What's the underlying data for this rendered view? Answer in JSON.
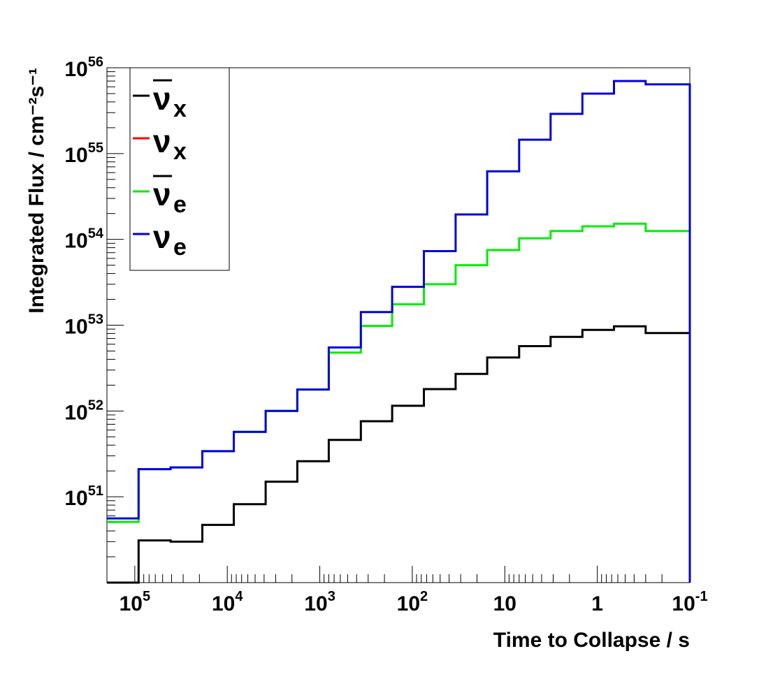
{
  "chart_data": {
    "type": "line",
    "step": true,
    "xlabel": "Time to Collapse / s",
    "ylabel": "Integrated Flux / cm⁻²s⁻¹",
    "x_reversed": true,
    "x_log": true,
    "y_log": true,
    "xlim": [
      200000,
      0.1
    ],
    "ylim": [
      1e+50,
      1e+56
    ],
    "grid": false,
    "legend_position": "top-left",
    "x_ticks": [
      {
        "value": 100000,
        "base": "10",
        "exp": "5"
      },
      {
        "value": 10000,
        "base": "10",
        "exp": "4"
      },
      {
        "value": 1000,
        "base": "10",
        "exp": "3"
      },
      {
        "value": 100,
        "base": "10",
        "exp": "2"
      },
      {
        "value": 10,
        "base": "10",
        "exp": ""
      },
      {
        "value": 1,
        "base": "1",
        "exp": ""
      },
      {
        "value": 0.1,
        "base": "10",
        "exp": "-1"
      }
    ],
    "y_ticks": [
      {
        "value": 1e+51,
        "base": "10",
        "exp": "51"
      },
      {
        "value": 1e+52,
        "base": "10",
        "exp": "52"
      },
      {
        "value": 1e+53,
        "base": "10",
        "exp": "53"
      },
      {
        "value": 1e+54,
        "base": "10",
        "exp": "54"
      },
      {
        "value": 1e+55,
        "base": "10",
        "exp": "55"
      },
      {
        "value": 1e+56,
        "base": "10",
        "exp": "56"
      }
    ],
    "bin_edges": [
      200000,
      91000,
      41000,
      18600,
      8500,
      3850,
      1750,
      800,
      360,
      165,
      75,
      34,
      15.5,
      7.0,
      3.2,
      1.45,
      0.66,
      0.3,
      0.135,
      0.1
    ],
    "series": [
      {
        "name": "ν̄x",
        "symbol": "ν",
        "bar": true,
        "sub": "x",
        "color": "#000000",
        "values": [
          1e+50,
          3.1e+50,
          3e+50,
          4.7e+50,
          8.2e+50,
          1.5e+51,
          2.6e+51,
          4.6e+51,
          7.6e+51,
          1.15e+52,
          1.8e+52,
          2.7e+52,
          4.2e+52,
          5.7e+52,
          7.3e+52,
          8.8e+52,
          9.7e+52,
          8.1e+52,
          8.1e+52
        ]
      },
      {
        "name": "νx",
        "symbol": "ν",
        "bar": false,
        "sub": "x",
        "color": "#ff0000",
        "values": []
      },
      {
        "name": "ν̄e",
        "symbol": "ν",
        "bar": true,
        "sub": "e",
        "color": "#00ee00",
        "values": [
          5.1e+50,
          2.1e+51,
          2.2e+51,
          3.4e+51,
          5.7e+51,
          1e+52,
          1.78e+52,
          4.8e+52,
          9.8e+52,
          1.75e+53,
          3e+53,
          5e+53,
          7.5e+53,
          1.03e+54,
          1.25e+54,
          1.42e+54,
          1.52e+54,
          1.25e+54,
          1.25e+54
        ]
      },
      {
        "name": "νe",
        "symbol": "ν",
        "bar": false,
        "sub": "e",
        "color": "#0000dd",
        "values": [
          5.6e+50,
          2.1e+51,
          2.2e+51,
          3.4e+51,
          5.7e+51,
          1e+52,
          1.78e+52,
          5.5e+52,
          1.42e+53,
          2.8e+53,
          7.3e+53,
          1.95e+54,
          6.2e+54,
          1.45e+55,
          2.9e+55,
          5e+55,
          7e+55,
          6.4e+55,
          6.4e+55
        ]
      }
    ]
  }
}
